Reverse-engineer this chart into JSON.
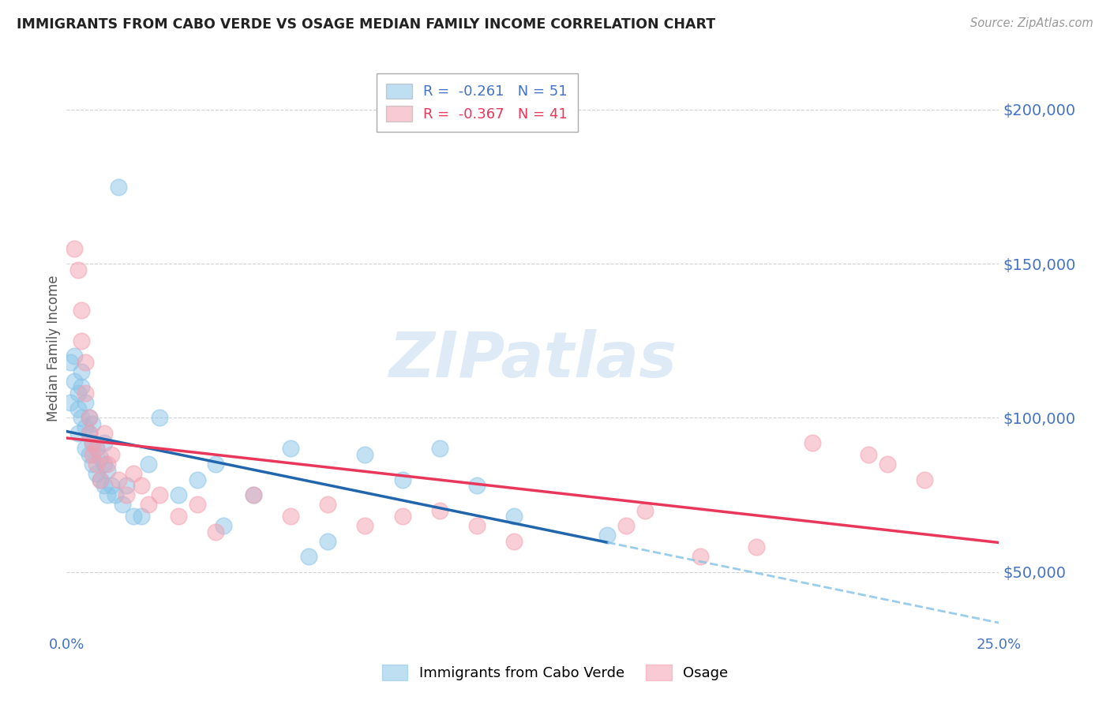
{
  "title": "IMMIGRANTS FROM CABO VERDE VS OSAGE MEDIAN FAMILY INCOME CORRELATION CHART",
  "source": "Source: ZipAtlas.com",
  "ylabel": "Median Family Income",
  "xlim": [
    0.0,
    0.25
  ],
  "ylim": [
    30000,
    215000
  ],
  "yticks": [
    50000,
    100000,
    150000,
    200000
  ],
  "ytick_labels": [
    "$50,000",
    "$100,000",
    "$150,000",
    "$200,000"
  ],
  "xticks": [
    0.0,
    0.05,
    0.1,
    0.15,
    0.2,
    0.25
  ],
  "xtick_labels": [
    "0.0%",
    "",
    "",
    "",
    "",
    "25.0%"
  ],
  "blue_R": -0.261,
  "blue_N": 51,
  "pink_R": -0.367,
  "pink_N": 41,
  "blue_color": "#89c4e8",
  "pink_color": "#f4a0b0",
  "blue_line_color": "#2166ac",
  "pink_line_color": "#e8375a",
  "blue_dashed_color": "#89c4e8",
  "axis_color": "#4472c4",
  "grid_color": "#cccccc",
  "background_color": "#ffffff",
  "blue_x": [
    0.001,
    0.001,
    0.002,
    0.002,
    0.003,
    0.003,
    0.003,
    0.004,
    0.004,
    0.004,
    0.005,
    0.005,
    0.005,
    0.006,
    0.006,
    0.006,
    0.007,
    0.007,
    0.007,
    0.008,
    0.008,
    0.009,
    0.009,
    0.01,
    0.01,
    0.01,
    0.011,
    0.011,
    0.012,
    0.013,
    0.014,
    0.015,
    0.016,
    0.018,
    0.02,
    0.022,
    0.025,
    0.03,
    0.035,
    0.04,
    0.042,
    0.05,
    0.06,
    0.065,
    0.07,
    0.08,
    0.09,
    0.1,
    0.11,
    0.12,
    0.145
  ],
  "blue_y": [
    105000,
    118000,
    112000,
    120000,
    95000,
    103000,
    108000,
    100000,
    110000,
    115000,
    90000,
    97000,
    105000,
    88000,
    95000,
    100000,
    85000,
    92000,
    98000,
    82000,
    90000,
    80000,
    87000,
    78000,
    85000,
    92000,
    75000,
    83000,
    78000,
    75000,
    175000,
    72000,
    78000,
    68000,
    68000,
    85000,
    100000,
    75000,
    80000,
    85000,
    65000,
    75000,
    90000,
    55000,
    60000,
    88000,
    80000,
    90000,
    78000,
    68000,
    62000
  ],
  "pink_x": [
    0.002,
    0.003,
    0.004,
    0.004,
    0.005,
    0.005,
    0.006,
    0.006,
    0.007,
    0.007,
    0.008,
    0.008,
    0.009,
    0.01,
    0.011,
    0.012,
    0.014,
    0.016,
    0.018,
    0.02,
    0.022,
    0.025,
    0.03,
    0.035,
    0.04,
    0.05,
    0.06,
    0.07,
    0.08,
    0.09,
    0.1,
    0.11,
    0.12,
    0.15,
    0.155,
    0.17,
    0.185,
    0.2,
    0.215,
    0.22,
    0.23
  ],
  "pink_y": [
    155000,
    148000,
    135000,
    125000,
    118000,
    108000,
    100000,
    95000,
    92000,
    88000,
    85000,
    90000,
    80000,
    95000,
    85000,
    88000,
    80000,
    75000,
    82000,
    78000,
    72000,
    75000,
    68000,
    72000,
    63000,
    75000,
    68000,
    72000,
    65000,
    68000,
    70000,
    65000,
    60000,
    65000,
    70000,
    55000,
    58000,
    92000,
    88000,
    85000,
    80000
  ]
}
